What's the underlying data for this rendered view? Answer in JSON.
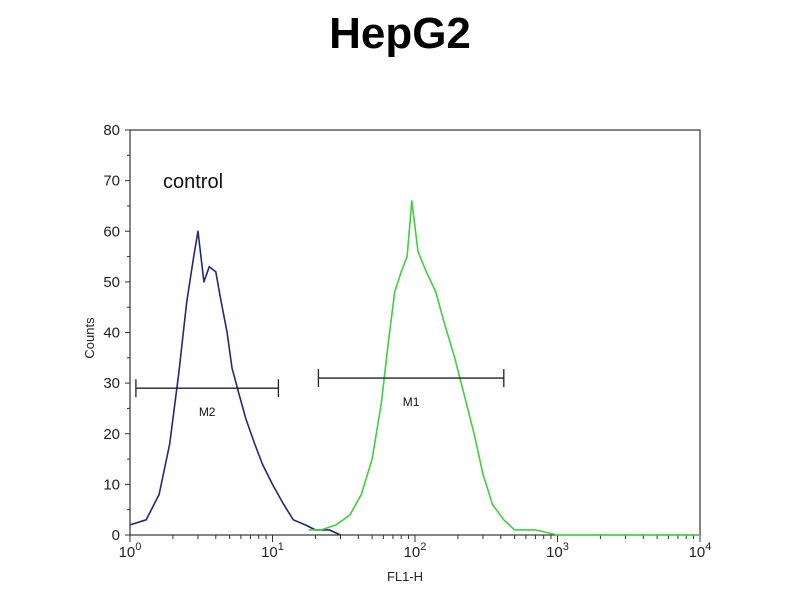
{
  "chart_data": {
    "type": "line",
    "title": "HepG2",
    "xlabel": "FL1-H",
    "ylabel": "Counts",
    "xscale": "log",
    "xlim": [
      1,
      10000
    ],
    "ylim": [
      0,
      80
    ],
    "x_ticks": [
      {
        "value": 1,
        "base": "10",
        "exp": "0"
      },
      {
        "value": 10,
        "base": "10",
        "exp": "1"
      },
      {
        "value": 100,
        "base": "10",
        "exp": "2"
      },
      {
        "value": 1000,
        "base": "10",
        "exp": "3"
      },
      {
        "value": 10000,
        "base": "10",
        "exp": "4"
      }
    ],
    "y_ticks": [
      "0",
      "10",
      "20",
      "30",
      "40",
      "50",
      "60",
      "70",
      "80"
    ],
    "annotation": "control",
    "series": [
      {
        "color": "#1f2a7a",
        "x": [
          1.0,
          1.3,
          1.6,
          1.9,
          2.2,
          2.5,
          2.8,
          3.0,
          3.3,
          3.6,
          4.0,
          4.3,
          4.8,
          5.2,
          5.8,
          6.5,
          7.5,
          8.5,
          10,
          12,
          14,
          17,
          20,
          25,
          30
        ],
        "y": [
          2,
          3,
          8,
          18,
          32,
          46,
          55,
          60,
          50,
          53,
          52,
          47,
          40,
          33,
          28,
          23,
          18,
          14,
          10,
          6,
          3,
          2,
          1,
          1,
          0
        ]
      },
      {
        "color": "#3fcf3f",
        "x": [
          18,
          22,
          28,
          35,
          42,
          50,
          58,
          65,
          72,
          80,
          88,
          95,
          105,
          120,
          140,
          160,
          190,
          220,
          260,
          300,
          350,
          420,
          500,
          700,
          1000,
          2000,
          10000
        ],
        "y": [
          1,
          1,
          2,
          4,
          8,
          15,
          26,
          38,
          48,
          52,
          55,
          66,
          56,
          52,
          48,
          42,
          35,
          28,
          20,
          12,
          6,
          3,
          1,
          1,
          0,
          0,
          0
        ]
      }
    ],
    "markers": [
      {
        "label": "M2",
        "x_start": 1.1,
        "x_end": 11,
        "y": 29
      },
      {
        "label": "M1",
        "x_start": 21,
        "x_end": 420,
        "y": 31
      }
    ]
  }
}
